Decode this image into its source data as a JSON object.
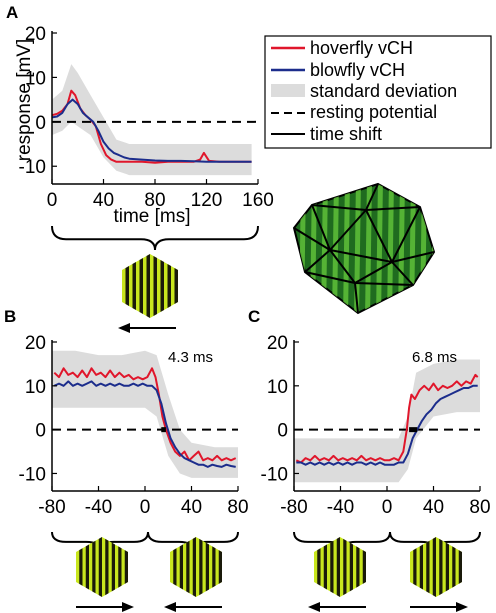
{
  "figure": {
    "panel_letters": [
      "A",
      "B",
      "C"
    ],
    "legend": [
      {
        "label": "hoverfly vCH",
        "style": "red-line"
      },
      {
        "label": "blowfly vCH",
        "style": "blue-line"
      },
      {
        "label": "standard deviation",
        "style": "gray-box"
      },
      {
        "label": "resting potential",
        "style": "dashed"
      },
      {
        "label": "time shift",
        "style": "thick-black"
      }
    ],
    "colors": {
      "hoverfly": "#e0162b",
      "blowfly": "#1c2d8c",
      "std": "#dcdcdc",
      "stimulus_yellow": "#c8e61e",
      "stimulus_dark": "#1a1a0a",
      "icosa_dark": "#1f6b1f",
      "icosa_light": "#5fbf3a"
    },
    "icons": [
      "hexagon-grating-icon",
      "arrow-left-icon",
      "arrow-right-icon",
      "icosahedron-stimulus-icon"
    ]
  },
  "chart_data": [
    {
      "panel": "A",
      "type": "line",
      "xlabel": "time [ms]",
      "ylabel": "response [mV]",
      "xlim": [
        0,
        160
      ],
      "ylim": [
        -14,
        20
      ],
      "xticks": [
        "0",
        "40",
        "80",
        "120",
        "160"
      ],
      "yticks": [
        "-10",
        "0",
        "10",
        "20"
      ],
      "resting_potential": 0,
      "stimulus_motion": [
        "left"
      ],
      "series": [
        {
          "name": "hoverfly vCH",
          "x": [
            0,
            4,
            8,
            12,
            15,
            18,
            22,
            26,
            30,
            34,
            38,
            42,
            46,
            50,
            55,
            60,
            70,
            80,
            90,
            100,
            110,
            115,
            118,
            122,
            130,
            140,
            150,
            155
          ],
          "y": [
            1.5,
            1.8,
            2.5,
            4,
            7,
            6,
            3,
            1.5,
            0.5,
            -1,
            -5,
            -7.5,
            -8.5,
            -9,
            -9,
            -9,
            -9,
            -9.2,
            -9,
            -9,
            -9,
            -8.5,
            -7,
            -8.8,
            -9,
            -9,
            -9,
            -9
          ]
        },
        {
          "name": "blowfly vCH",
          "x": [
            0,
            4,
            8,
            12,
            16,
            20,
            24,
            28,
            32,
            36,
            40,
            44,
            48,
            52,
            56,
            60,
            70,
            80,
            90,
            100,
            110,
            120,
            130,
            140,
            150,
            155
          ],
          "y": [
            1,
            1.2,
            2,
            4,
            5,
            4,
            2,
            1,
            0,
            -2,
            -4.5,
            -6,
            -7,
            -7.5,
            -8,
            -8.3,
            -8.5,
            -8.7,
            -8.8,
            -8.8,
            -8.9,
            -9,
            -9,
            -9,
            -9,
            -9
          ]
        }
      ],
      "std_band": {
        "x": [
          0,
          8,
          15,
          20,
          30,
          40,
          50,
          60,
          80,
          100,
          120,
          140,
          155
        ],
        "lower": [
          -3,
          -2,
          0,
          -1,
          -3,
          -8,
          -11,
          -12,
          -12,
          -12,
          -12,
          -12,
          -12
        ],
        "upper": [
          5,
          7,
          13,
          11,
          6,
          1,
          -4,
          -5,
          -5,
          -5,
          -5,
          -5,
          -5
        ]
      }
    },
    {
      "panel": "B",
      "type": "line",
      "xlim": [
        -80,
        80
      ],
      "ylim": [
        -14,
        20
      ],
      "xticks": [
        "-80",
        "-40",
        "0",
        "40",
        "80"
      ],
      "yticks": [
        "-10",
        "0",
        "10",
        "20"
      ],
      "resting_potential": 0,
      "time_shift_label": "4.3 ms",
      "time_shift": {
        "x_start": 14,
        "x_end": 18,
        "y": 0
      },
      "stimulus_motion": [
        "right",
        "left"
      ],
      "series": [
        {
          "name": "hoverfly vCH",
          "x": [
            -78,
            -74,
            -70,
            -66,
            -62,
            -58,
            -54,
            -50,
            -46,
            -42,
            -38,
            -34,
            -30,
            -26,
            -22,
            -18,
            -14,
            -10,
            -6,
            -2,
            2,
            6,
            9,
            12,
            15,
            18,
            22,
            26,
            30,
            34,
            38,
            42,
            46,
            50,
            54,
            58,
            62,
            66,
            70,
            74,
            78
          ],
          "y": [
            13,
            12,
            14,
            12.5,
            13,
            12,
            13.5,
            12,
            14,
            12.5,
            13,
            12,
            13.5,
            12,
            13,
            12,
            12.5,
            11.5,
            12,
            11.5,
            12,
            14,
            12,
            8,
            3,
            0,
            -3,
            -5,
            -6,
            -5,
            -7,
            -6,
            -5,
            -7,
            -6.5,
            -7,
            -6,
            -7,
            -6.5,
            -7,
            -6.5
          ]
        },
        {
          "name": "blowfly vCH",
          "x": [
            -78,
            -74,
            -70,
            -66,
            -62,
            -58,
            -54,
            -50,
            -46,
            -42,
            -38,
            -34,
            -30,
            -26,
            -22,
            -18,
            -14,
            -10,
            -6,
            -2,
            2,
            6,
            10,
            14,
            18,
            22,
            26,
            30,
            34,
            38,
            42,
            46,
            50,
            54,
            58,
            62,
            66,
            70,
            74,
            78
          ],
          "y": [
            10,
            10.5,
            10,
            11,
            10,
            10.5,
            10,
            10.5,
            11,
            10,
            10.5,
            10,
            10.5,
            10,
            10.5,
            10,
            10,
            10.5,
            10,
            10.5,
            10,
            10,
            9,
            6,
            1.5,
            -2,
            -4,
            -5.5,
            -6.5,
            -7,
            -7.5,
            -8,
            -8,
            -8.5,
            -8,
            -8.3,
            -8.5,
            -8,
            -8.3,
            -8.5
          ]
        }
      ],
      "std_band": {
        "x": [
          -80,
          -60,
          -40,
          -20,
          0,
          10,
          20,
          30,
          40,
          60,
          80
        ],
        "lower": [
          5,
          5,
          5,
          5,
          5,
          3,
          -6,
          -10,
          -11,
          -11,
          -11
        ],
        "upper": [
          18,
          18,
          17,
          17,
          18,
          17,
          8,
          0,
          -3,
          -4,
          -4
        ]
      }
    },
    {
      "panel": "C",
      "type": "line",
      "xlim": [
        -80,
        80
      ],
      "ylim": [
        -14,
        20
      ],
      "xticks": [
        "-80",
        "-40",
        "0",
        "40",
        "80"
      ],
      "yticks": [
        "-10",
        "0",
        "10",
        "20"
      ],
      "resting_potential": 0,
      "time_shift_label": "6.8 ms",
      "time_shift": {
        "x_start": 19,
        "x_end": 26,
        "y": 0
      },
      "stimulus_motion": [
        "left",
        "right"
      ],
      "series": [
        {
          "name": "hoverfly vCH",
          "x": [
            -78,
            -74,
            -70,
            -66,
            -62,
            -58,
            -54,
            -50,
            -46,
            -42,
            -38,
            -34,
            -30,
            -26,
            -22,
            -18,
            -14,
            -10,
            -6,
            -2,
            2,
            6,
            10,
            14,
            17,
            19,
            21,
            24,
            28,
            32,
            36,
            40,
            44,
            48,
            52,
            56,
            60,
            64,
            68,
            72,
            76,
            78
          ],
          "y": [
            -7,
            -7.5,
            -6.5,
            -7,
            -6,
            -7,
            -6.5,
            -7,
            -6,
            -7,
            -6.5,
            -7,
            -6.5,
            -7,
            -6,
            -7,
            -6.5,
            -7,
            -6.5,
            -7,
            -7,
            -6.5,
            -7,
            -5,
            0,
            5,
            8,
            7,
            9,
            10,
            9,
            10.5,
            9,
            10,
            9.5,
            10,
            11,
            10,
            11,
            10.5,
            12.5,
            12
          ]
        },
        {
          "name": "blowfly vCH",
          "x": [
            -78,
            -74,
            -70,
            -66,
            -62,
            -58,
            -54,
            -50,
            -46,
            -42,
            -38,
            -34,
            -30,
            -26,
            -22,
            -18,
            -14,
            -10,
            -6,
            -2,
            2,
            6,
            10,
            14,
            18,
            22,
            26,
            30,
            34,
            38,
            42,
            46,
            50,
            54,
            58,
            62,
            66,
            70,
            74,
            78
          ],
          "y": [
            -7.5,
            -7.5,
            -8,
            -7.5,
            -8,
            -7.5,
            -8,
            -7.5,
            -8,
            -7.5,
            -8,
            -7.5,
            -8,
            -7.5,
            -7.5,
            -8,
            -7.5,
            -8,
            -7.5,
            -8,
            -8,
            -8,
            -7.5,
            -7.5,
            -5.5,
            -2,
            0,
            2,
            3.5,
            4.5,
            6,
            7,
            7.5,
            8,
            8.5,
            9,
            9.5,
            9.5,
            10,
            10
          ]
        }
      ],
      "std_band": {
        "x": [
          -80,
          -60,
          -40,
          -20,
          0,
          10,
          18,
          25,
          40,
          60,
          80
        ],
        "lower": [
          -12,
          -12,
          -12,
          -12,
          -12,
          -12,
          -9,
          -2,
          3,
          4,
          4
        ],
        "upper": [
          -2,
          -2,
          -2,
          -2,
          -2,
          -2,
          3,
          13,
          15,
          16,
          16
        ]
      }
    }
  ]
}
